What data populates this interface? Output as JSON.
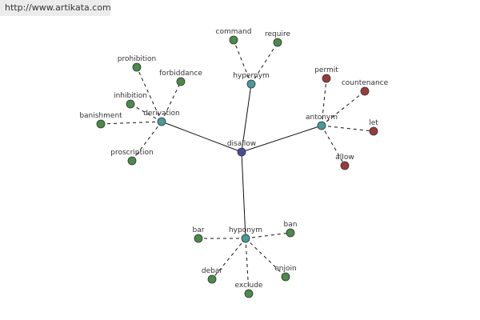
{
  "watermark": "http://www.artikata.com",
  "nodes": [
    {
      "label": "disallow"
    },
    {
      "label": "hypernym"
    },
    {
      "label": "antonym"
    },
    {
      "label": "hyponym"
    },
    {
      "label": "derivation"
    },
    {
      "label": "command"
    },
    {
      "label": "require"
    },
    {
      "label": "permit"
    },
    {
      "label": "countenance"
    },
    {
      "label": "let"
    },
    {
      "label": "allow"
    },
    {
      "label": "bar"
    },
    {
      "label": "ban"
    },
    {
      "label": "debar"
    },
    {
      "label": "exclude"
    },
    {
      "label": "enjoin"
    },
    {
      "label": "prohibition"
    },
    {
      "label": "forbiddance"
    },
    {
      "label": "inhibition"
    },
    {
      "label": "banishment"
    },
    {
      "label": "proscription"
    }
  ]
}
